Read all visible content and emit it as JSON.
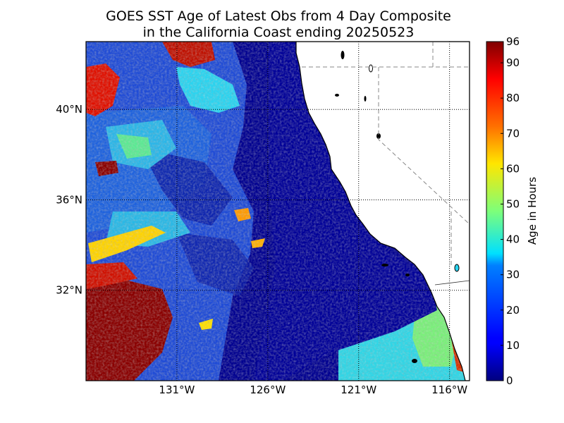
{
  "title": {
    "line1": "GOES SST Age of Latest Obs from 4 Day Composite",
    "line2": "in the California Coast ending 20250523"
  },
  "map": {
    "lon_range": [
      -136.0,
      -114.9
    ],
    "lat_range": [
      28.0,
      43.0
    ],
    "lon_ticks": [
      {
        "value": -131,
        "label": "131°W"
      },
      {
        "value": -126,
        "label": "126°W"
      },
      {
        "value": -121,
        "label": "121°W"
      },
      {
        "value": -116,
        "label": "116°W"
      }
    ],
    "lat_ticks": [
      {
        "value": 40,
        "label": "40°N"
      },
      {
        "value": 36,
        "label": "36°N"
      },
      {
        "value": 32,
        "label": "32°N"
      }
    ],
    "grid": "dotted",
    "land_color": "#ffffff",
    "ocean_base_color": "#000090"
  },
  "colorbar": {
    "label": "Age in Hours",
    "min": 0,
    "max": 96,
    "colormap": "jet",
    "ticks": [
      "0",
      "10",
      "20",
      "30",
      "40",
      "50",
      "60",
      "70",
      "80",
      "90",
      "96"
    ],
    "tick_values": [
      0,
      10,
      20,
      30,
      40,
      50,
      60,
      70,
      80,
      90,
      96
    ]
  }
}
